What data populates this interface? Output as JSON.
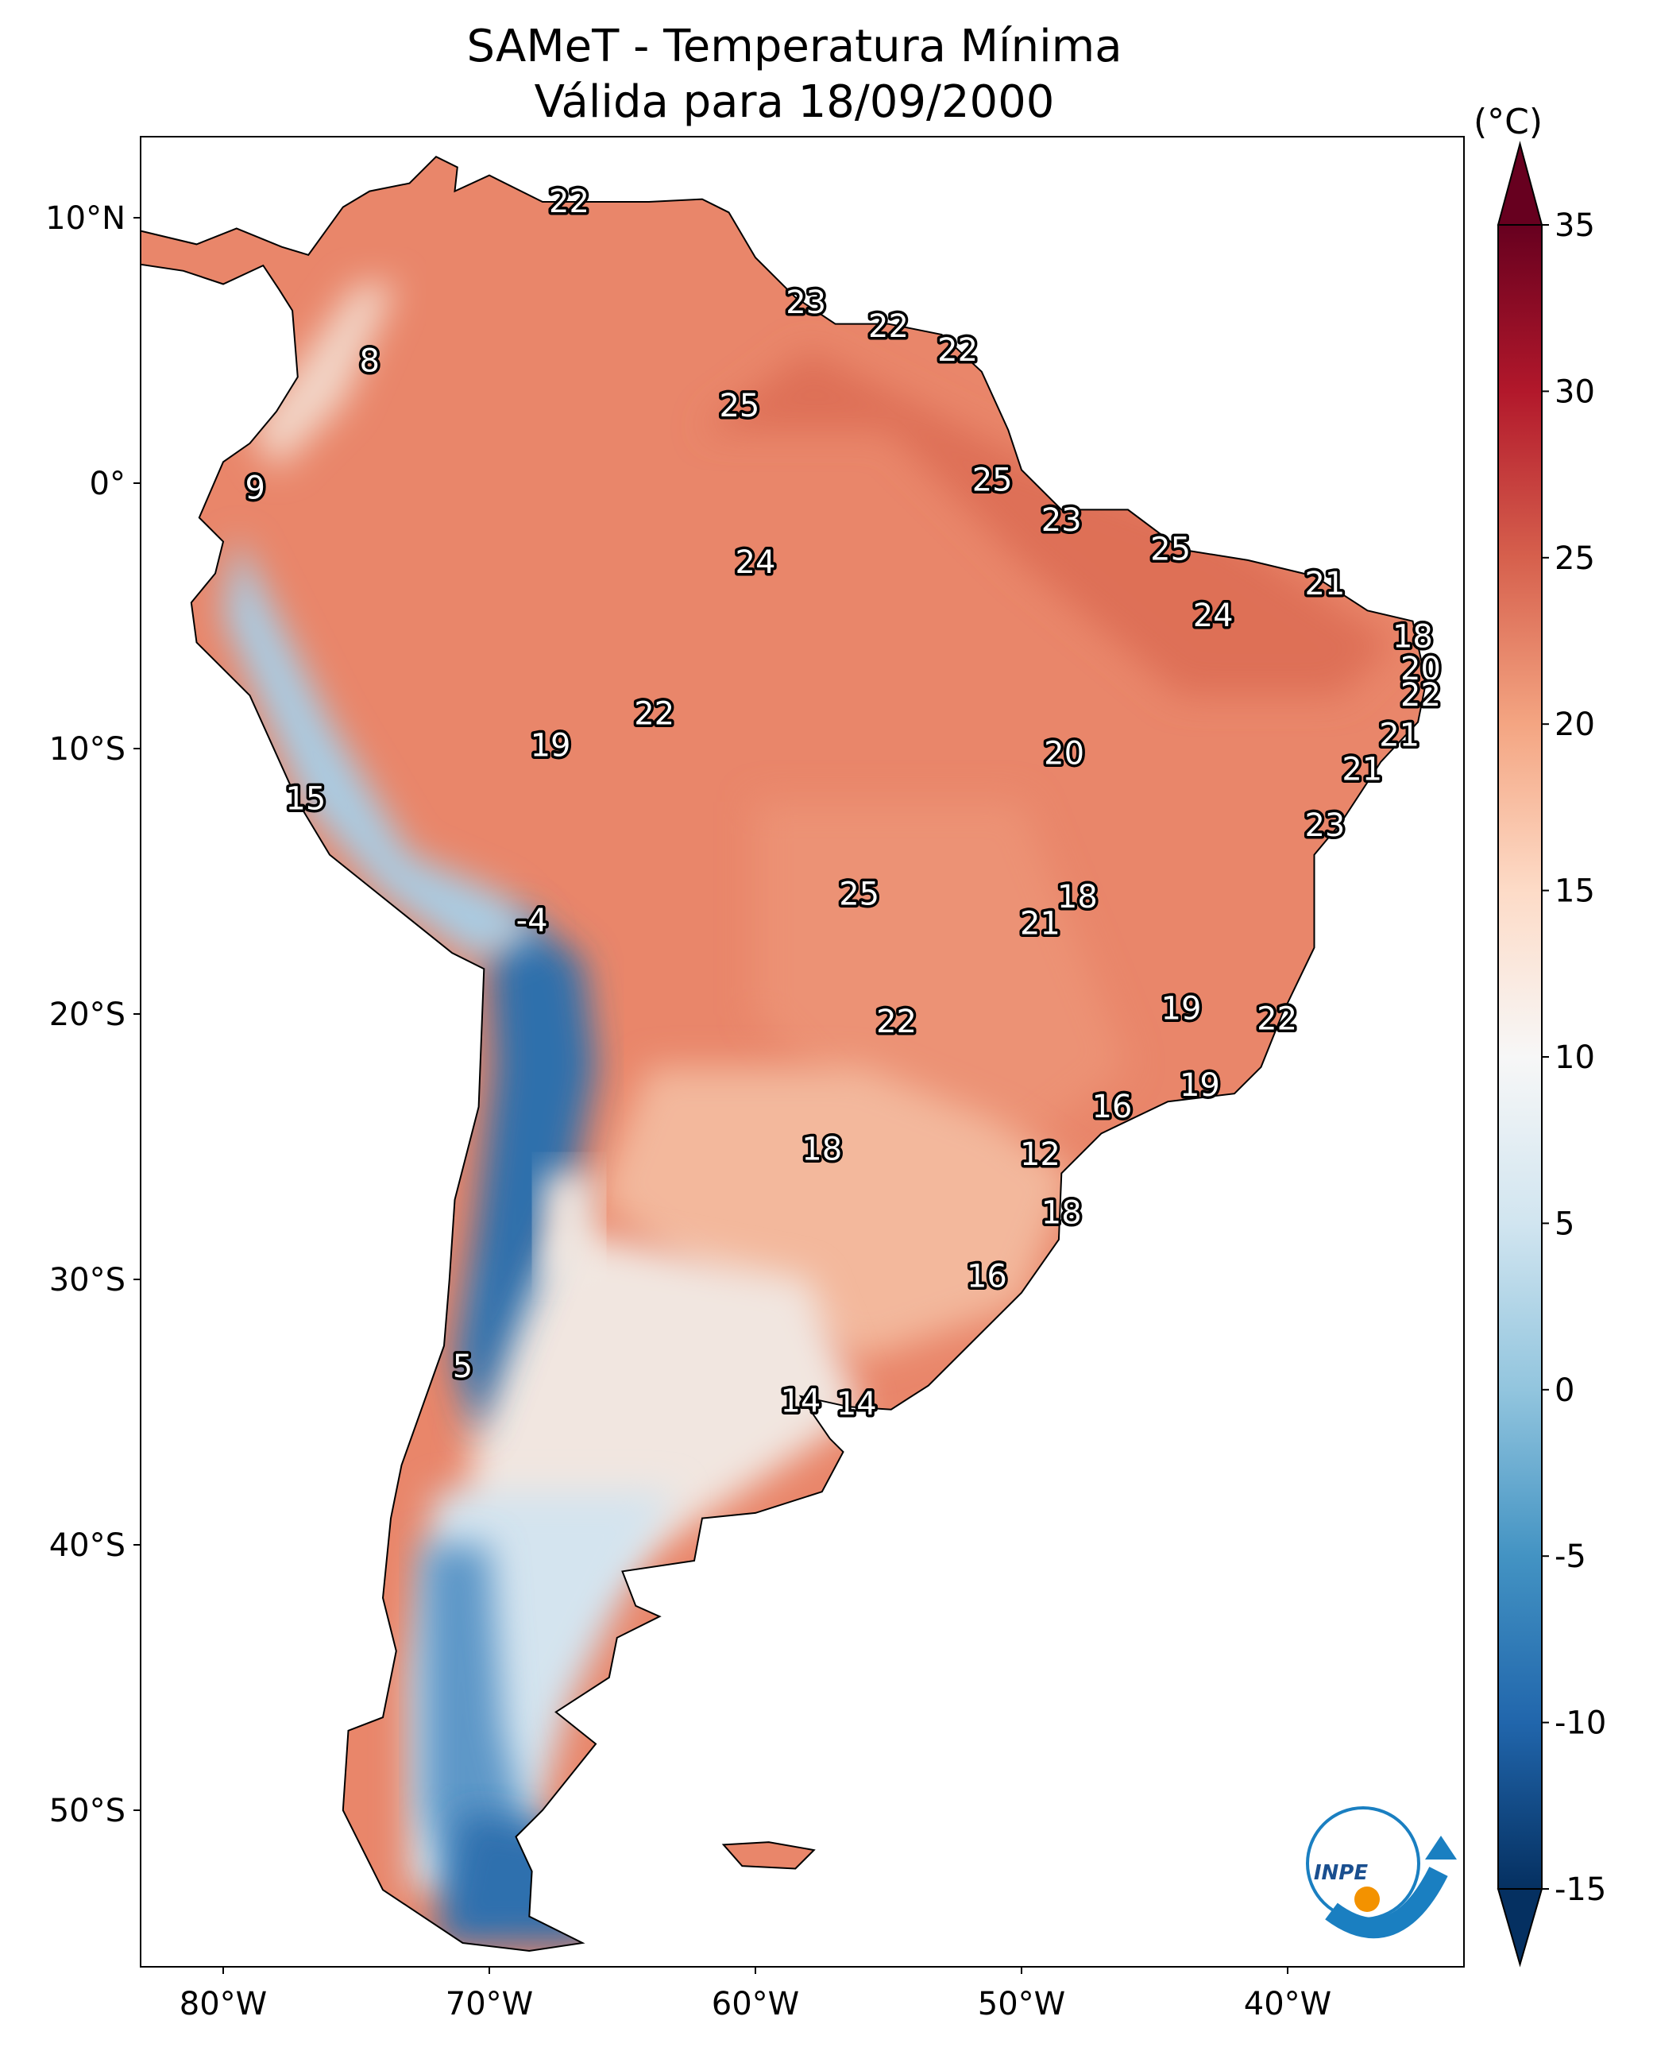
{
  "title": {
    "line1": "SAMeT - Temperatura Mínima",
    "line2": "Válida para 18/09/2000"
  },
  "colorbar": {
    "unit": "(°C)",
    "min": -15,
    "max": 35,
    "extend": "both",
    "colormap": "RdBu_r",
    "ticks": [
      "-15",
      "-10",
      "-5",
      "0",
      "5",
      "10",
      "15",
      "20",
      "25",
      "30",
      "35"
    ],
    "colors": [
      "#053061",
      "#2166ac",
      "#4393c3",
      "#92c5de",
      "#d1e5f0",
      "#f7f7f7",
      "#fddbc7",
      "#f4a582",
      "#d6604d",
      "#b2182b",
      "#67001f"
    ]
  },
  "map": {
    "lon_range": [
      -83.1,
      -33.4
    ],
    "lat_range": [
      -55.9,
      13.0
    ],
    "lat_ticks": [
      {
        "v": 10,
        "t": "10°N"
      },
      {
        "v": 0,
        "t": "0°"
      },
      {
        "v": -10,
        "t": "10°S"
      },
      {
        "v": -20,
        "t": "20°S"
      },
      {
        "v": -30,
        "t": "30°S"
      },
      {
        "v": -40,
        "t": "40°S"
      },
      {
        "v": -50,
        "t": "50°S"
      }
    ],
    "lon_ticks": [
      {
        "v": -80,
        "t": "80°W"
      },
      {
        "v": -70,
        "t": "70°W"
      },
      {
        "v": -60,
        "t": "60°W"
      },
      {
        "v": -50,
        "t": "50°W"
      },
      {
        "v": -40,
        "t": "40°W"
      }
    ]
  },
  "labels": [
    {
      "t": "22",
      "lon": -67.0,
      "lat": 10.6
    },
    {
      "t": "23",
      "lon": -58.1,
      "lat": 6.8
    },
    {
      "t": "22",
      "lon": -55.0,
      "lat": 5.9
    },
    {
      "t": "22",
      "lon": -52.4,
      "lat": 5.0
    },
    {
      "t": "8",
      "lon": -74.5,
      "lat": 4.6
    },
    {
      "t": "25",
      "lon": -60.6,
      "lat": 2.9
    },
    {
      "t": "9",
      "lon": -78.8,
      "lat": -0.2
    },
    {
      "t": "25",
      "lon": -51.1,
      "lat": 0.1
    },
    {
      "t": "23",
      "lon": -48.5,
      "lat": -1.4
    },
    {
      "t": "25",
      "lon": -44.4,
      "lat": -2.5
    },
    {
      "t": "24",
      "lon": -60.0,
      "lat": -3.0
    },
    {
      "t": "21",
      "lon": -38.6,
      "lat": -3.8
    },
    {
      "t": "24",
      "lon": -42.8,
      "lat": -5.0
    },
    {
      "t": "18",
      "lon": -35.3,
      "lat": -5.8
    },
    {
      "t": "20",
      "lon": -35.0,
      "lat": -7.0
    },
    {
      "t": "22",
      "lon": -35.0,
      "lat": -8.0
    },
    {
      "t": "22",
      "lon": -63.8,
      "lat": -8.7
    },
    {
      "t": "21",
      "lon": -35.8,
      "lat": -9.5
    },
    {
      "t": "19",
      "lon": -67.7,
      "lat": -9.9
    },
    {
      "t": "20",
      "lon": -48.4,
      "lat": -10.2
    },
    {
      "t": "21",
      "lon": -37.2,
      "lat": -10.8
    },
    {
      "t": "15",
      "lon": -76.9,
      "lat": -11.9
    },
    {
      "t": "23",
      "lon": -38.6,
      "lat": -12.9
    },
    {
      "t": "25",
      "lon": -56.1,
      "lat": -15.5
    },
    {
      "t": "18",
      "lon": -47.9,
      "lat": -15.6
    },
    {
      "t": "-4",
      "lon": -68.4,
      "lat": -16.5
    },
    {
      "t": "21",
      "lon": -49.3,
      "lat": -16.6
    },
    {
      "t": "19",
      "lon": -44.0,
      "lat": -19.8
    },
    {
      "t": "22",
      "lon": -54.7,
      "lat": -20.3
    },
    {
      "t": "22",
      "lon": -40.4,
      "lat": -20.2
    },
    {
      "t": "19",
      "lon": -43.3,
      "lat": -22.7
    },
    {
      "t": "16",
      "lon": -46.6,
      "lat": -23.5
    },
    {
      "t": "18",
      "lon": -57.5,
      "lat": -25.1
    },
    {
      "t": "12",
      "lon": -49.3,
      "lat": -25.3
    },
    {
      "t": "18",
      "lon": -48.5,
      "lat": -27.5
    },
    {
      "t": "16",
      "lon": -51.3,
      "lat": -29.9
    },
    {
      "t": "5",
      "lon": -71.0,
      "lat": -33.3
    },
    {
      "t": "14",
      "lon": -58.3,
      "lat": -34.6
    },
    {
      "t": "14",
      "lon": -56.2,
      "lat": -34.7
    }
  ],
  "logo": {
    "text": "INPE"
  }
}
